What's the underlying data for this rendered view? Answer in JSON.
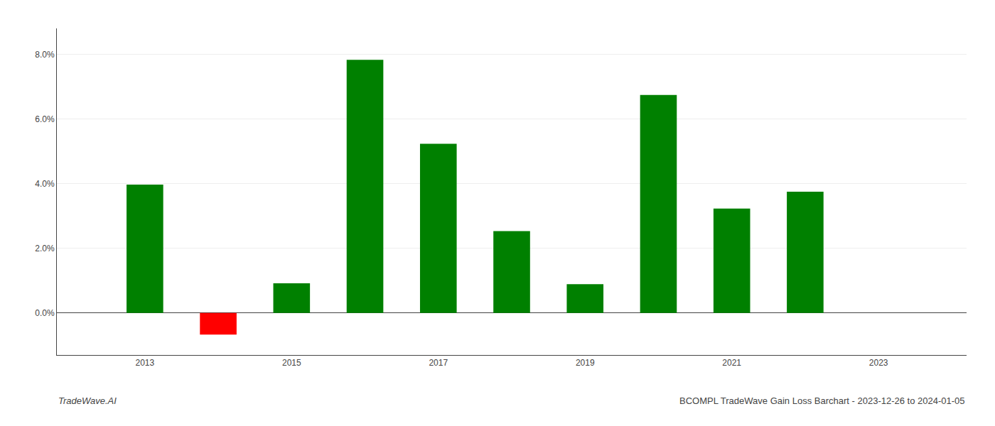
{
  "chart_data": {
    "type": "bar",
    "x": [
      2013,
      2014,
      2015,
      2016,
      2017,
      2018,
      2019,
      2020,
      2021,
      2022
    ],
    "values": [
      0.0397,
      -0.0067,
      0.0092,
      0.0783,
      0.0523,
      0.0253,
      0.0089,
      0.0674,
      0.0323,
      0.0375
    ],
    "colors": [
      "#008000",
      "#ff0000",
      "#008000",
      "#008000",
      "#008000",
      "#008000",
      "#008000",
      "#008000",
      "#008000",
      "#008000"
    ],
    "xlim": [
      2011.8,
      2024.2
    ],
    "xticks": [
      2013,
      2015,
      2017,
      2019,
      2021,
      2023
    ],
    "ylim": [
      -0.013,
      0.088
    ],
    "yticks": [
      {
        "value": 0.0,
        "label": "0.0%"
      },
      {
        "value": 0.02,
        "label": "2.0%"
      },
      {
        "value": 0.04,
        "label": "4.0%"
      },
      {
        "value": 0.06,
        "label": "6.0%"
      },
      {
        "value": 0.08,
        "label": "8.0%"
      }
    ],
    "grid": true,
    "annotations": [
      "TradeWave.AI",
      "BCOMPL TradeWave Gain Loss Barchart - 2023-12-26 to 2024-01-05"
    ]
  }
}
